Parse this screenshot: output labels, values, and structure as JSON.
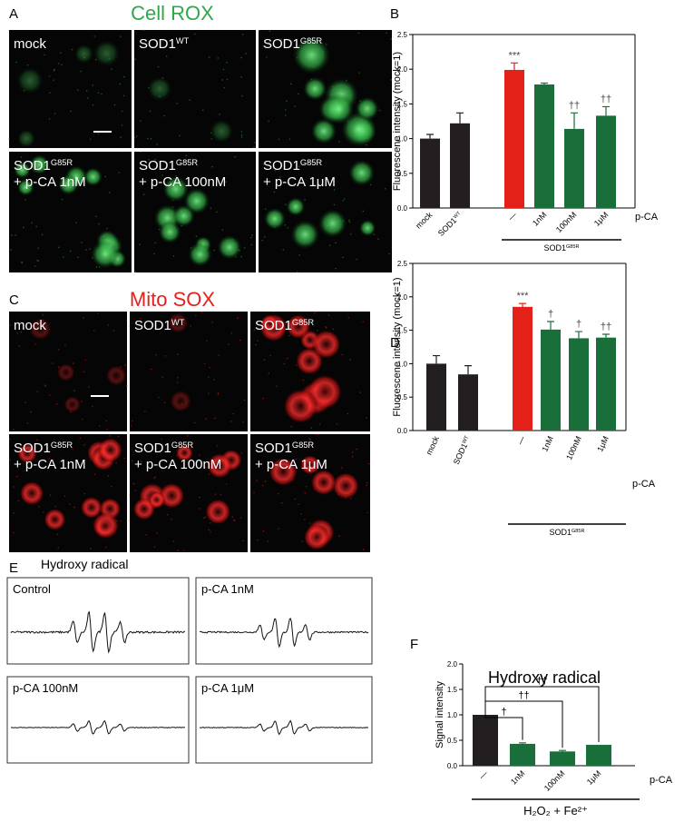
{
  "figure": {
    "panel_a": {
      "letter": "A",
      "title": "Cell ROX",
      "images": [
        {
          "label": {
            "base": "mock"
          }
        },
        {
          "label": {
            "base": "SOD1",
            "sup": "WT"
          }
        },
        {
          "label": {
            "base": "SOD1",
            "sup": "G85R"
          }
        },
        {
          "label": {
            "base": "SOD1",
            "sup": "G85R"
          },
          "sublabel": "+ p-CA 1nM"
        },
        {
          "label": {
            "base": "SOD1",
            "sup": "G85R"
          },
          "sublabel": "+ p-CA 100nM"
        },
        {
          "label": {
            "base": "SOD1",
            "sup": "G85R"
          },
          "sublabel": "+ p-CA 1μM"
        }
      ]
    },
    "panel_c": {
      "letter": "C",
      "title": "Mito SOX",
      "images": [
        {
          "label": {
            "base": "mock"
          }
        },
        {
          "label": {
            "base": "SOD1",
            "sup": "WT"
          }
        },
        {
          "label": {
            "base": "SOD1",
            "sup": "G85R"
          }
        },
        {
          "label": {
            "base": "SOD1",
            "sup": "G85R"
          },
          "sublabel": "+ p-CA 1nM"
        },
        {
          "label": {
            "base": "SOD1",
            "sup": "G85R"
          },
          "sublabel": "+ p-CA 100nM"
        },
        {
          "label": {
            "base": "SOD1",
            "sup": "G85R"
          },
          "sublabel": "+ p-CA 1μM"
        }
      ]
    },
    "panel_e": {
      "letter": "E",
      "title": "Hydroxy radical",
      "spectra": [
        "Control",
        "p-CA 1nM",
        "p-CA 100nM",
        "p-CA 1μM"
      ]
    }
  },
  "chart_data": [
    {
      "type": "bar",
      "letter": "B",
      "ylabel": "Fluorescene intensity (mock=1)",
      "categories": [
        {
          "base": "mock"
        },
        {
          "base": "SOD1",
          "sup": "WT"
        },
        {
          "base": "—"
        },
        {
          "base": "1nM"
        },
        {
          "base": "100nM"
        },
        {
          "base": "1μM"
        }
      ],
      "series": [
        {
          "values": [
            1.0,
            1.22,
            1.99,
            1.78,
            1.14,
            1.33
          ],
          "errors": [
            0.06,
            0.15,
            0.1,
            0.02,
            0.23,
            0.13
          ],
          "colors": [
            "#231f20",
            "#231f20",
            "#e32119",
            "#1a6e3a",
            "#1a6e3a",
            "#1a6e3a"
          ]
        }
      ],
      "annotations": [
        null,
        null,
        "***",
        null,
        "††",
        "††"
      ],
      "treatment_label": "p-CA",
      "group_label": {
        "base": "SOD1",
        "sup": "G85R"
      },
      "ylim": [
        0,
        2.5
      ],
      "yticks": [
        {
          "value": 0,
          "label": "0.0"
        },
        0.5,
        {
          "value": 1,
          "label": "1.0"
        },
        1.5,
        {
          "value": 2,
          "label": "2.0"
        },
        2.5
      ]
    },
    {
      "type": "bar",
      "letter": "D",
      "ylabel": "Fluorescene intensity (mock=1)",
      "categories": [
        {
          "base": "mock"
        },
        {
          "base": "SOD1",
          "sup": "WT"
        },
        {
          "base": "—"
        },
        {
          "base": "1nM"
        },
        {
          "base": "100nM"
        },
        {
          "base": "1μM"
        }
      ],
      "series": [
        {
          "values": [
            1.0,
            0.84,
            1.85,
            1.51,
            1.38,
            1.39
          ],
          "errors": [
            0.12,
            0.13,
            0.05,
            0.12,
            0.1,
            0.05
          ],
          "colors": [
            "#231f20",
            "#231f20",
            "#e32119",
            "#1a6e3a",
            "#1a6e3a",
            "#1a6e3a"
          ]
        }
      ],
      "annotations": [
        null,
        null,
        "***",
        "†",
        "†",
        "††"
      ],
      "treatment_label": "p-CA",
      "group_label": {
        "base": "SOD1",
        "sup": "G85R"
      },
      "ylim": [
        0,
        2.5
      ],
      "yticks": [
        {
          "value": 0,
          "label": "0.0"
        },
        0.5,
        {
          "value": 1,
          "label": "1.0"
        },
        1.5,
        {
          "value": 2,
          "label": "2.0"
        },
        2.5
      ]
    },
    {
      "type": "bar",
      "letter": "F",
      "title": "Hydroxy radical",
      "ylabel": "Signal intensity",
      "categories": [
        {
          "base": "—"
        },
        {
          "base": "1nM"
        },
        {
          "base": "100nM"
        },
        {
          "base": "1μM"
        }
      ],
      "series": [
        {
          "values": [
            1.0,
            0.43,
            0.28,
            0.41
          ],
          "errors": [
            null,
            0.02,
            0.02,
            null
          ],
          "colors": [
            "#231f20",
            "#1a6e3a",
            "#1a6e3a",
            "#1a6e3a"
          ]
        }
      ],
      "annotations": [
        null,
        "†",
        "††",
        "††"
      ],
      "comparison_brackets": true,
      "treatment_label": "p-CA",
      "group_label": "H₂O₂ + Fe²⁺",
      "ylim": [
        0,
        2.0
      ],
      "yticks": [
        {
          "value": 0,
          "label": "0.0"
        },
        0.5,
        {
          "value": 1,
          "label": "1.0"
        },
        1.5,
        {
          "value": 2,
          "label": "2.0"
        }
      ]
    }
  ]
}
